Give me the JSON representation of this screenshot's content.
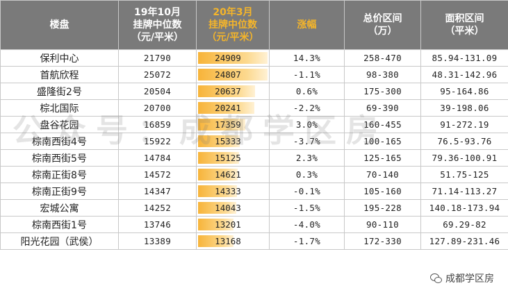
{
  "headers": {
    "name": "楼盘",
    "oct": [
      "19年10月",
      "挂牌中位数",
      "（元/平米）"
    ],
    "mar": [
      "20年3月",
      "挂牌中位数",
      "（元/平米）"
    ],
    "change": "涨幅",
    "total": [
      "总价区间",
      "（万）"
    ],
    "area": [
      "面积区间",
      "（平米）"
    ]
  },
  "rows": [
    {
      "name": "保利中心",
      "oct": "21790",
      "mar": "24909",
      "mar_value": 24909,
      "change": "14.3%",
      "total": "258-470",
      "area": "85.94-131.09"
    },
    {
      "name": "首航欣程",
      "oct": "25072",
      "mar": "24807",
      "mar_value": 24807,
      "change": "-1.1%",
      "total": "98-380",
      "area": "48.31-142.96"
    },
    {
      "name": "盛隆街2号",
      "oct": "20504",
      "mar": "20637",
      "mar_value": 20637,
      "change": "0.6%",
      "total": "175-300",
      "area": "95-164.86"
    },
    {
      "name": "棕北国际",
      "oct": "20700",
      "mar": "20241",
      "mar_value": 20241,
      "change": "-2.2%",
      "total": "69-390",
      "area": "39-198.06"
    },
    {
      "name": "盘谷花园",
      "oct": "16859",
      "mar": "17359",
      "mar_value": 17359,
      "change": "3.0%",
      "total": "160-455",
      "area": "91-272.19"
    },
    {
      "name": "棕南西街4号",
      "oct": "15922",
      "mar": "15333",
      "mar_value": 15333,
      "change": "-3.7%",
      "total": "100-165",
      "area": "76.5-93.76"
    },
    {
      "name": "棕南西街5号",
      "oct": "14784",
      "mar": "15125",
      "mar_value": 15125,
      "change": "2.3%",
      "total": "125-165",
      "area": "79.36-100.91"
    },
    {
      "name": "棕南正街8号",
      "oct": "14572",
      "mar": "14621",
      "mar_value": 14621,
      "change": "0.3%",
      "total": "70-140",
      "area": "51.75-125"
    },
    {
      "name": "棕南正街9号",
      "oct": "14347",
      "mar": "14333",
      "mar_value": 14333,
      "change": "-0.1%",
      "total": "105-160",
      "area": "71.14-113.27"
    },
    {
      "name": "宏城公寓",
      "oct": "14252",
      "mar": "14043",
      "mar_value": 14043,
      "change": "-1.5%",
      "total": "195-228",
      "area": "140.18-173.94"
    },
    {
      "name": "棕南西街1号",
      "oct": "13746",
      "mar": "13201",
      "mar_value": 13201,
      "change": "-4.0%",
      "total": "90-110",
      "area": "69.29-82"
    },
    {
      "name": "阳光花园（武侯）",
      "oct": "13389",
      "mar": "13168",
      "mar_value": 13168,
      "change": "-1.7%",
      "total": "172-330",
      "area": "127.89-231.46"
    }
  ],
  "watermark": "公众号：成都学区房",
  "badge": "成都学区房",
  "colors": {
    "header_bg": "#7a7a7a",
    "header_highlight": "#f5b52a",
    "bar": "#f7b43a"
  }
}
